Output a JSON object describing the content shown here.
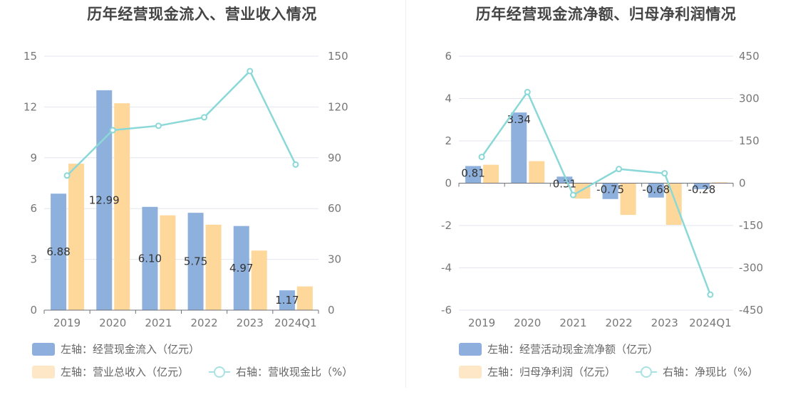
{
  "charts": [
    {
      "id": "left",
      "title": "历年经营现金流入、营业收入情况",
      "legend": [
        {
          "label": "左轴：经营现金流入（亿元）",
          "kind": "bar",
          "color": "#8eaedd"
        },
        {
          "label": "左轴：营业总收入（亿元）",
          "kind": "bar",
          "color": "#fde7c6"
        },
        {
          "label": "右轴：营收现金比（%）",
          "kind": "line",
          "color": "#8ad8d8"
        }
      ]
    },
    {
      "id": "right",
      "title": "历年经营现金流净额、归母净利润情况",
      "legend": [
        {
          "label": "左轴：经营活动现金流净额（亿元）",
          "kind": "bar",
          "color": "#8eaedd"
        },
        {
          "label": "左轴：归母净利润（亿元）",
          "kind": "bar",
          "color": "#fde7c6"
        },
        {
          "label": "右轴：净现比（%）",
          "kind": "line",
          "color": "#8ad8d8"
        }
      ]
    }
  ],
  "chart_data": [
    {
      "type": "bar",
      "title": "历年经营现金流入、营业收入情况",
      "categories": [
        "2019",
        "2020",
        "2021",
        "2022",
        "2023",
        "2024Q1"
      ],
      "left_axis": {
        "ylim": [
          0,
          15
        ],
        "ticks": [
          0,
          3,
          6,
          9,
          12,
          15
        ]
      },
      "right_axis": {
        "ylim": [
          0,
          150
        ],
        "ticks": [
          0,
          30,
          60,
          90,
          120,
          150
        ]
      },
      "grid": true,
      "series": [
        {
          "name": "左轴：经营现金流入（亿元）",
          "type": "bar",
          "axis": "left",
          "color": "#8eb0dd",
          "values": [
            6.88,
            12.99,
            6.1,
            5.75,
            4.97,
            1.17
          ],
          "data_labels": [
            "6.88",
            "12.99",
            "6.10",
            "5.75",
            "4.97",
            "1.17"
          ]
        },
        {
          "name": "左轴：营业总收入（亿元）",
          "type": "bar",
          "axis": "left",
          "color": "#fed89b",
          "values": [
            8.65,
            12.22,
            5.6,
            5.05,
            3.52,
            1.4
          ]
        },
        {
          "name": "右轴：营收现金比（%）",
          "type": "line",
          "axis": "right",
          "color": "#8ad8d8",
          "values": [
            79.5,
            106.3,
            108.9,
            113.9,
            141.2,
            86.0
          ]
        }
      ]
    },
    {
      "type": "bar",
      "title": "历年经营现金流净额、归母净利润情况",
      "categories": [
        "2019",
        "2020",
        "2021",
        "2022",
        "2023",
        "2024Q1"
      ],
      "left_axis": {
        "ylim": [
          -6,
          6
        ],
        "ticks": [
          -6,
          -4,
          -2,
          0,
          2,
          4,
          6
        ]
      },
      "right_axis": {
        "ylim": [
          -450,
          450
        ],
        "ticks": [
          -450,
          -300,
          -150,
          0,
          150,
          300,
          450
        ]
      },
      "grid": true,
      "series": [
        {
          "name": "左轴：经营活动现金流净额（亿元）",
          "type": "bar",
          "axis": "left",
          "color": "#8eb0dd",
          "values": [
            0.81,
            3.34,
            0.31,
            -0.75,
            -0.68,
            -0.28
          ],
          "data_labels": [
            "0.81",
            "3.34",
            "0.31",
            "-0.75",
            "-0.68",
            "-0.28"
          ]
        },
        {
          "name": "左轴：归母净利润（亿元）",
          "type": "bar",
          "axis": "left",
          "color": "#fed89b",
          "values": [
            0.87,
            1.04,
            -0.73,
            -1.5,
            -1.97,
            0.04
          ]
        },
        {
          "name": "右轴：净现比（%）",
          "type": "line",
          "axis": "right",
          "color": "#8ad8d8",
          "values": [
            93,
            323,
            -42,
            50,
            35,
            -395
          ]
        }
      ]
    }
  ]
}
